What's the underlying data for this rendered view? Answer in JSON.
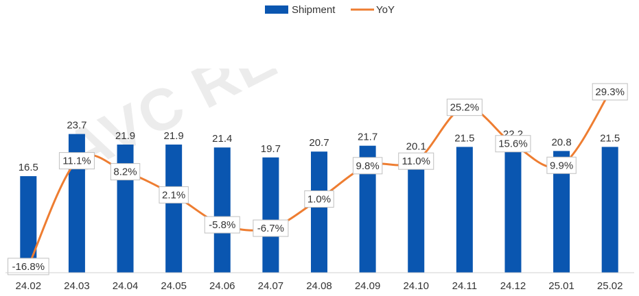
{
  "chart_data": {
    "type": "bar",
    "categories": [
      "24.02",
      "24.03",
      "24.04",
      "24.05",
      "24.06",
      "24.07",
      "24.08",
      "24.09",
      "24.10",
      "24.11",
      "24.12",
      "25.01",
      "25.02"
    ],
    "series": [
      {
        "name": "Shipment",
        "kind": "bar",
        "color": "#0a56b0",
        "values": [
          16.5,
          23.7,
          21.9,
          21.9,
          21.4,
          19.7,
          20.7,
          21.7,
          20.1,
          21.5,
          22.2,
          20.8,
          21.5
        ],
        "labels": [
          "16.5",
          "23.7",
          "21.9",
          "21.9",
          "21.4",
          "19.7",
          "20.7",
          "21.7",
          "20.1",
          "21.5",
          "22.2",
          "20.8",
          "21.5"
        ]
      },
      {
        "name": "YoY",
        "kind": "line",
        "color": "#ee7d31",
        "values": [
          -16.8,
          11.1,
          8.2,
          2.1,
          -5.8,
          -6.7,
          1.0,
          9.8,
          11.0,
          25.2,
          15.6,
          9.9,
          29.3
        ],
        "labels": [
          "-16.8%",
          "11.1%",
          "8.2%",
          "2.1%",
          "-5.8%",
          "-6.7%",
          "1.0%",
          "9.8%",
          "11.0%",
          "25.2%",
          "15.6%",
          "9.9%",
          "29.3%"
        ]
      }
    ],
    "legend_position": "top",
    "grid": false
  },
  "watermark": "AVC REVO 奥维睿沃"
}
